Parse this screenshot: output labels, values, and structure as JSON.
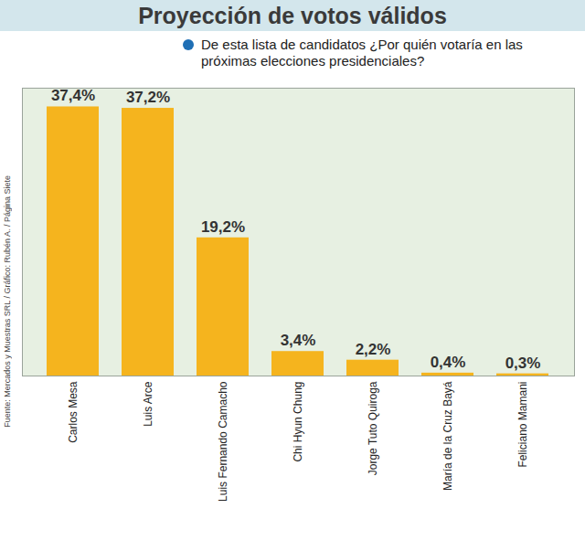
{
  "chart_data": {
    "type": "bar",
    "title": "Proyección de votos válidos",
    "subtitle": "De esta lista de candidatos ¿Por quién votaría en las próximas elecciones presidenciales?",
    "source": "Fuente: Mercados y Muestras SRL / Gráfico: Rubén A. / Página Siete",
    "categories": [
      "Carlos Mesa",
      "Luis Arce",
      "Luis Fernando Camacho",
      "Chi Hyun Chung",
      "Jorge Tuto Quiroga",
      "María de la Cruz Bayá",
      "Feliciano Mamani"
    ],
    "values": [
      37.4,
      37.2,
      19.2,
      3.4,
      2.2,
      0.4,
      0.3
    ],
    "value_labels": [
      "37,4%",
      "37,2%",
      "19,2%",
      "3,4%",
      "2,2%",
      "0,4%",
      "0,3%"
    ],
    "color": "#f5b41e",
    "ylim": [
      0,
      40
    ],
    "data_labels": true,
    "tick_labels": "x",
    "grid": false
  }
}
